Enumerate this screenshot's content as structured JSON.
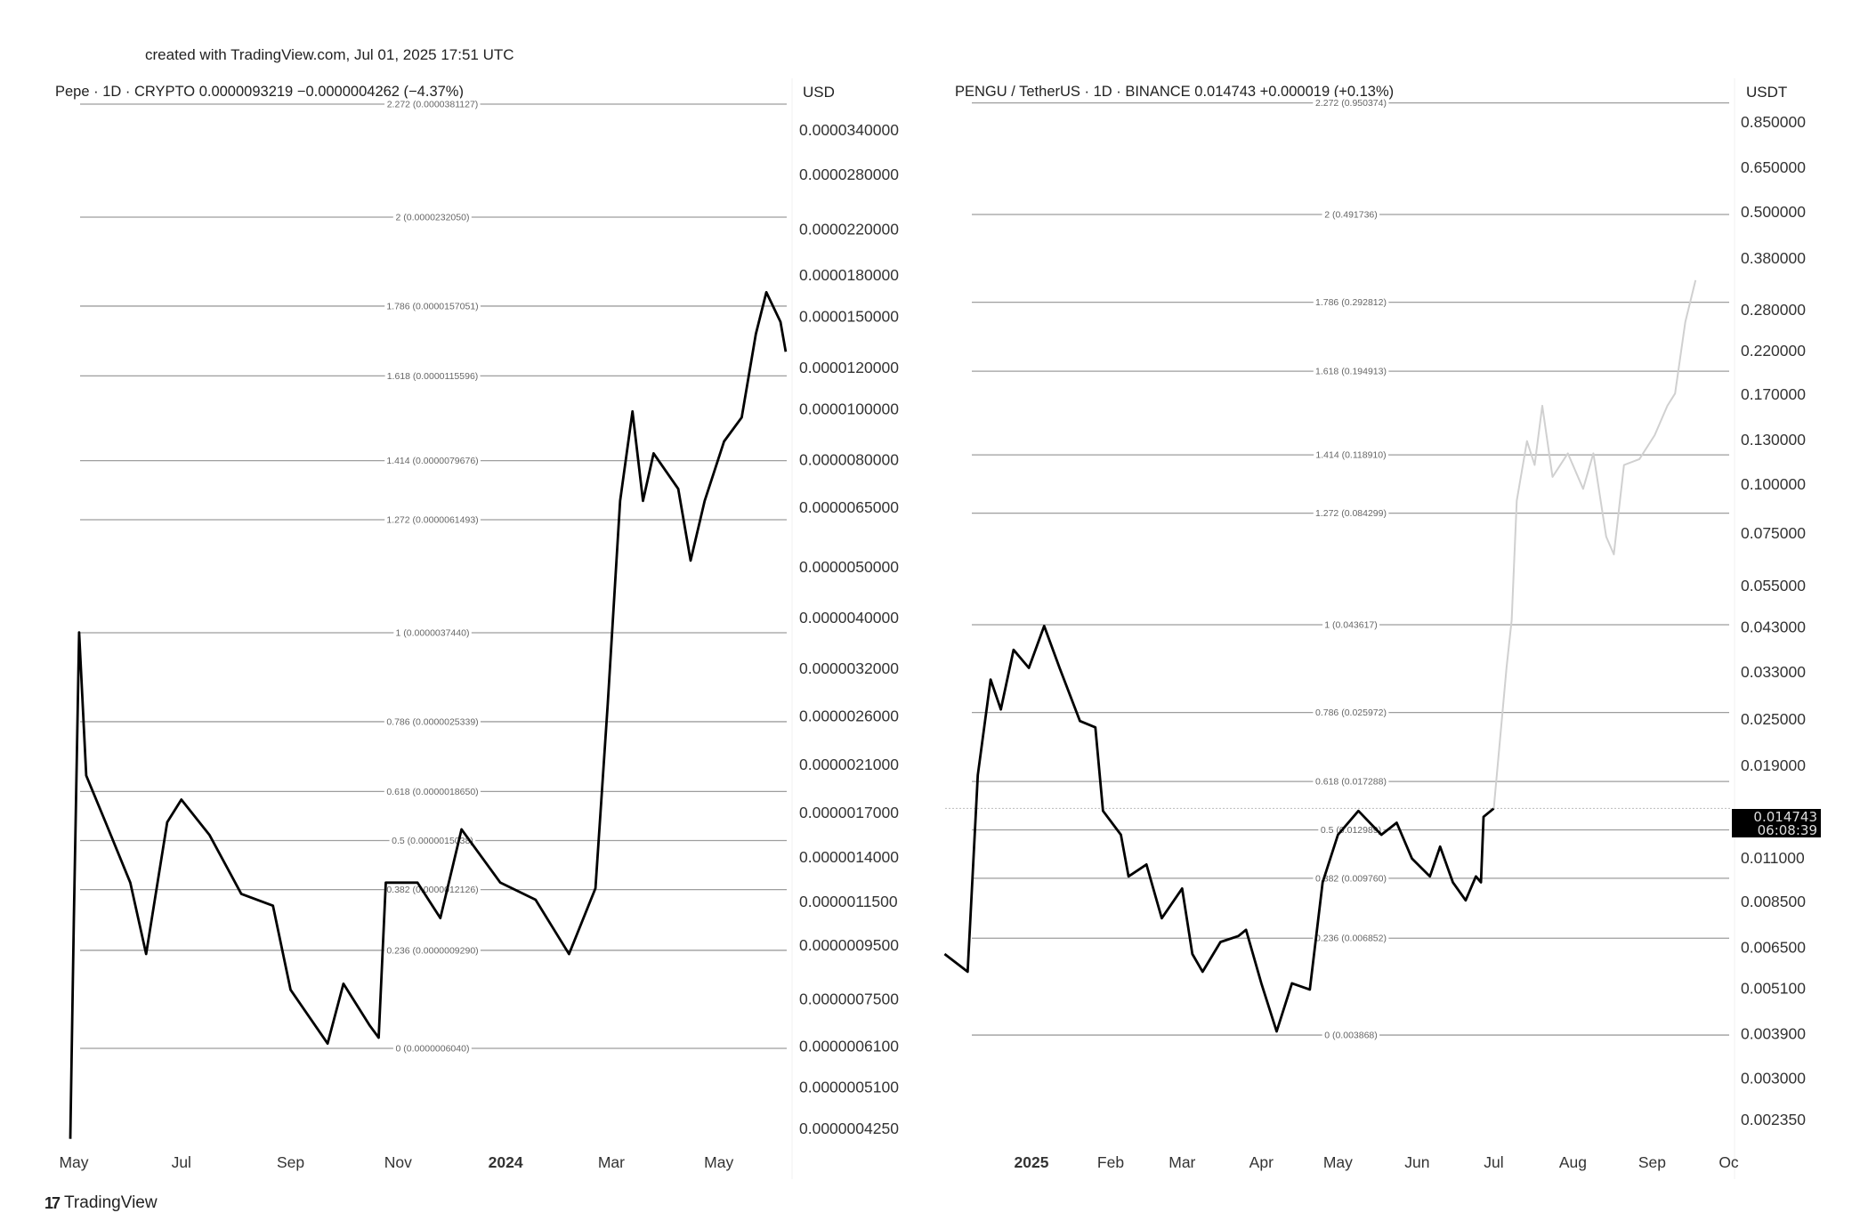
{
  "created_note": "created with TradingView.com, Jul 01, 2025 17:51 UTC",
  "footer_logo": "TradingView",
  "chart_data": [
    {
      "type": "line",
      "header": "Pepe · 1D · CRYPTO  0.0000093219  −0.0000004262 (−4.37%)",
      "currency": "USD",
      "yscale": "log",
      "grid": false,
      "line_color": "#000000",
      "fib_color": "#9e9e9e",
      "y_ticks": [
        "0.0000340000",
        "0.0000280000",
        "0.0000220000",
        "0.0000180000",
        "0.0000150000",
        "0.0000120000",
        "0.0000100000",
        "0.0000080000",
        "0.0000065000",
        "0.0000050000",
        "0.0000040000",
        "0.0000032000",
        "0.0000026000",
        "0.0000021000",
        "0.0000017000",
        "0.0000014000",
        "0.0000011500",
        "0.0000009500",
        "0.0000007500",
        "0.0000006100",
        "0.0000005100",
        "0.0000004250"
      ],
      "x_ticks": [
        {
          "label": "May",
          "date": "2023-05-01",
          "bold": false
        },
        {
          "label": "Jul",
          "date": "2023-07-01",
          "bold": false
        },
        {
          "label": "Sep",
          "date": "2023-09-01",
          "bold": false
        },
        {
          "label": "Nov",
          "date": "2023-11-01",
          "bold": false
        },
        {
          "label": "2024",
          "date": "2024-01-01",
          "bold": true
        },
        {
          "label": "Mar",
          "date": "2024-03-01",
          "bold": false
        },
        {
          "label": "May",
          "date": "2024-05-01",
          "bold": false
        }
      ],
      "fib_levels": [
        {
          "label": "2.272 (0.0000381127)",
          "price": 3.81127e-05
        },
        {
          "label": "2 (0.0000232050)",
          "price": 2.3205e-05
        },
        {
          "label": "1.786 (0.0000157051)",
          "price": 1.57051e-05
        },
        {
          "label": "1.618 (0.0000115596)",
          "price": 1.15596e-05
        },
        {
          "label": "1.414 (0.0000079676)",
          "price": 7.9676e-06
        },
        {
          "label": "1.272 (0.0000061493)",
          "price": 6.1493e-06
        },
        {
          "label": "1 (0.0000037440)",
          "price": 3.744e-06
        },
        {
          "label": "0.786 (0.0000025339)",
          "price": 2.5339e-06
        },
        {
          "label": "0.618 (0.0000018650)",
          "price": 1.865e-06
        },
        {
          "label": "0.5 (0.0000015038)",
          "price": 1.5038e-06
        },
        {
          "label": "0.382 (0.0000012126)",
          "price": 1.2126e-06
        },
        {
          "label": "0.236 (0.0000009290)",
          "price": 9.29e-07
        },
        {
          "label": "0 (0.0000006040)",
          "price": 6.04e-07
        }
      ],
      "series": [
        {
          "points": [
            [
              "2023-04-29",
              4.06e-07
            ],
            [
              "2023-05-01",
              1.07e-06
            ],
            [
              "2023-05-04",
              3.75e-06
            ],
            [
              "2023-05-08",
              2e-06
            ],
            [
              "2023-05-19",
              1.63e-06
            ],
            [
              "2023-06-02",
              1.25e-06
            ],
            [
              "2023-06-11",
              9.14e-07
            ],
            [
              "2023-06-23",
              1.63e-06
            ],
            [
              "2023-07-01",
              1.8e-06
            ],
            [
              "2023-07-17",
              1.54e-06
            ],
            [
              "2023-08-04",
              1.19e-06
            ],
            [
              "2023-08-22",
              1.13e-06
            ],
            [
              "2023-09-01",
              7.81e-07
            ],
            [
              "2023-09-22",
              6.17e-07
            ],
            [
              "2023-10-01",
              8.02e-07
            ],
            [
              "2023-10-16",
              6.67e-07
            ],
            [
              "2023-10-21",
              6.33e-07
            ],
            [
              "2023-10-25",
              1.25e-06
            ],
            [
              "2023-11-12",
              1.25e-06
            ],
            [
              "2023-11-25",
              1.07e-06
            ],
            [
              "2023-12-07",
              1.58e-06
            ],
            [
              "2023-12-29",
              1.25e-06
            ],
            [
              "2024-01-18",
              1.16e-06
            ],
            [
              "2024-02-06",
              9.14e-07
            ],
            [
              "2024-02-21",
              1.22e-06
            ],
            [
              "2024-02-28",
              2.74e-06
            ],
            [
              "2024-03-06",
              6.68e-06
            ],
            [
              "2024-03-13",
              9.89e-06
            ],
            [
              "2024-03-19",
              6.68e-06
            ],
            [
              "2024-03-25",
              8.23e-06
            ],
            [
              "2024-04-08",
              7.04e-06
            ],
            [
              "2024-04-15",
              5.14e-06
            ],
            [
              "2024-04-23",
              6.68e-06
            ],
            [
              "2024-05-04",
              8.67e-06
            ],
            [
              "2024-05-14",
              9.63e-06
            ],
            [
              "2024-05-22",
              1.389e-05
            ],
            [
              "2024-05-28",
              1.669e-05
            ],
            [
              "2024-06-05",
              1.465e-05
            ],
            [
              "2024-06-08",
              1.285e-05
            ]
          ]
        }
      ]
    },
    {
      "type": "line",
      "header": "PENGU / TetherUS · 1D · BINANCE  0.014743  +0.000019 (+0.13%)",
      "currency": "USDT",
      "yscale": "log",
      "grid": false,
      "line_color": "#000000",
      "projection_color": "#d0d0d0",
      "fib_color": "#9e9e9e",
      "last_price": "0.014743",
      "countdown": "06:08:39",
      "y_ticks": [
        "0.850000",
        "0.650000",
        "0.500000",
        "0.380000",
        "0.280000",
        "0.220000",
        "0.170000",
        "0.130000",
        "0.100000",
        "0.075000",
        "0.055000",
        "0.043000",
        "0.033000",
        "0.025000",
        "0.019000",
        "0.011000",
        "0.008500",
        "0.006500",
        "0.005100",
        "0.003900",
        "0.003000",
        "0.002350"
      ],
      "x_ticks": [
        {
          "label": "2025",
          "date": "2025-01-01",
          "bold": true
        },
        {
          "label": "Feb",
          "date": "2025-02-01",
          "bold": false
        },
        {
          "label": "Mar",
          "date": "2025-03-01",
          "bold": false
        },
        {
          "label": "Apr",
          "date": "2025-04-01",
          "bold": false
        },
        {
          "label": "May",
          "date": "2025-05-01",
          "bold": false
        },
        {
          "label": "Jun",
          "date": "2025-06-01",
          "bold": false
        },
        {
          "label": "Jul",
          "date": "2025-07-01",
          "bold": false
        },
        {
          "label": "Aug",
          "date": "2025-08-01",
          "bold": false
        },
        {
          "label": "Sep",
          "date": "2025-09-01",
          "bold": false
        },
        {
          "label": "Oc",
          "date": "2025-10-01",
          "bold": false
        }
      ],
      "fib_levels": [
        {
          "label": "2.272 (0.950374)",
          "price": 0.950374
        },
        {
          "label": "2 (0.491736)",
          "price": 0.491736
        },
        {
          "label": "1.786 (0.292812)",
          "price": 0.292812
        },
        {
          "label": "1.618 (0.194913)",
          "price": 0.194913
        },
        {
          "label": "1.414 (0.118910)",
          "price": 0.11891
        },
        {
          "label": "1.272 (0.084299)",
          "price": 0.084299
        },
        {
          "label": "1 (0.043617)",
          "price": 0.043617
        },
        {
          "label": "0.786 (0.025972)",
          "price": 0.025972
        },
        {
          "label": "0.618 (0.017288)",
          "price": 0.017288
        },
        {
          "label": "0.5 (0.012989)",
          "price": 0.012989
        },
        {
          "label": "0.382 (0.009760)",
          "price": 0.00976
        },
        {
          "label": "0.236 (0.006852)",
          "price": 0.006852
        },
        {
          "label": "0 (0.003868)",
          "price": 0.003868
        }
      ],
      "series": [
        {
          "points": [
            [
              "2024-11-28",
              0.00624
            ],
            [
              "2024-12-07",
              0.00562
            ],
            [
              "2024-12-11",
              0.01795
            ],
            [
              "2024-12-16",
              0.03155
            ],
            [
              "2024-12-20",
              0.02645
            ],
            [
              "2024-12-25",
              0.0376
            ],
            [
              "2024-12-31",
              0.0338
            ],
            [
              "2025-01-06",
              0.0433
            ],
            [
              "2025-01-12",
              0.0338
            ],
            [
              "2025-01-20",
              0.0247
            ],
            [
              "2025-01-26",
              0.0238
            ],
            [
              "2025-01-29",
              0.01453
            ],
            [
              "2025-02-05",
              0.01262
            ],
            [
              "2025-02-08",
              0.00987
            ],
            [
              "2025-02-15",
              0.01059
            ],
            [
              "2025-02-21",
              0.00771
            ],
            [
              "2025-03-01",
              0.00919
            ],
            [
              "2025-03-05",
              0.00624
            ],
            [
              "2025-03-09",
              0.00562
            ],
            [
              "2025-03-16",
              0.0067
            ],
            [
              "2025-03-23",
              0.00694
            ],
            [
              "2025-03-26",
              0.0072
            ],
            [
              "2025-04-01",
              0.00525
            ],
            [
              "2025-04-07",
              0.00395
            ],
            [
              "2025-04-13",
              0.00525
            ],
            [
              "2025-04-20",
              0.00506
            ],
            [
              "2025-04-25",
              0.00953
            ],
            [
              "2025-05-01",
              0.01262
            ],
            [
              "2025-05-09",
              0.01453
            ],
            [
              "2025-05-18",
              0.01262
            ],
            [
              "2025-05-24",
              0.01355
            ],
            [
              "2025-05-30",
              0.01096
            ],
            [
              "2025-06-06",
              0.00987
            ],
            [
              "2025-06-10",
              0.01177
            ],
            [
              "2025-06-15",
              0.00953
            ],
            [
              "2025-06-20",
              0.00857
            ],
            [
              "2025-06-24",
              0.00987
            ],
            [
              "2025-06-26",
              0.00953
            ],
            [
              "2025-06-27",
              0.01403
            ],
            [
              "2025-07-01",
              0.014743
            ]
          ]
        },
        {
          "projection": true,
          "points": [
            [
              "2025-07-01",
              0.014743
            ],
            [
              "2025-07-06",
              0.0338
            ],
            [
              "2025-07-08",
              0.0448
            ],
            [
              "2025-07-10",
              0.0907
            ],
            [
              "2025-07-14",
              0.129
            ],
            [
              "2025-07-17",
              0.112
            ],
            [
              "2025-07-20",
              0.159
            ],
            [
              "2025-07-24",
              0.1044
            ],
            [
              "2025-07-30",
              0.12
            ],
            [
              "2025-08-05",
              0.0973
            ],
            [
              "2025-08-09",
              0.12
            ],
            [
              "2025-08-14",
              0.0734
            ],
            [
              "2025-08-17",
              0.0661
            ],
            [
              "2025-08-21",
              0.112
            ],
            [
              "2025-08-27",
              0.116
            ],
            [
              "2025-09-02",
              0.1336
            ],
            [
              "2025-09-07",
              0.159
            ],
            [
              "2025-09-10",
              0.1708
            ],
            [
              "2025-09-14",
              0.2607
            ],
            [
              "2025-09-18",
              0.3334
            ]
          ]
        }
      ]
    }
  ]
}
